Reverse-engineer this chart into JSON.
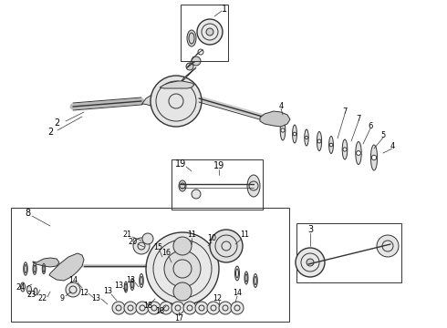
{
  "bg_color": "#ffffff",
  "line_color": "#333333",
  "fig_width": 4.9,
  "fig_height": 3.6,
  "dpi": 100
}
